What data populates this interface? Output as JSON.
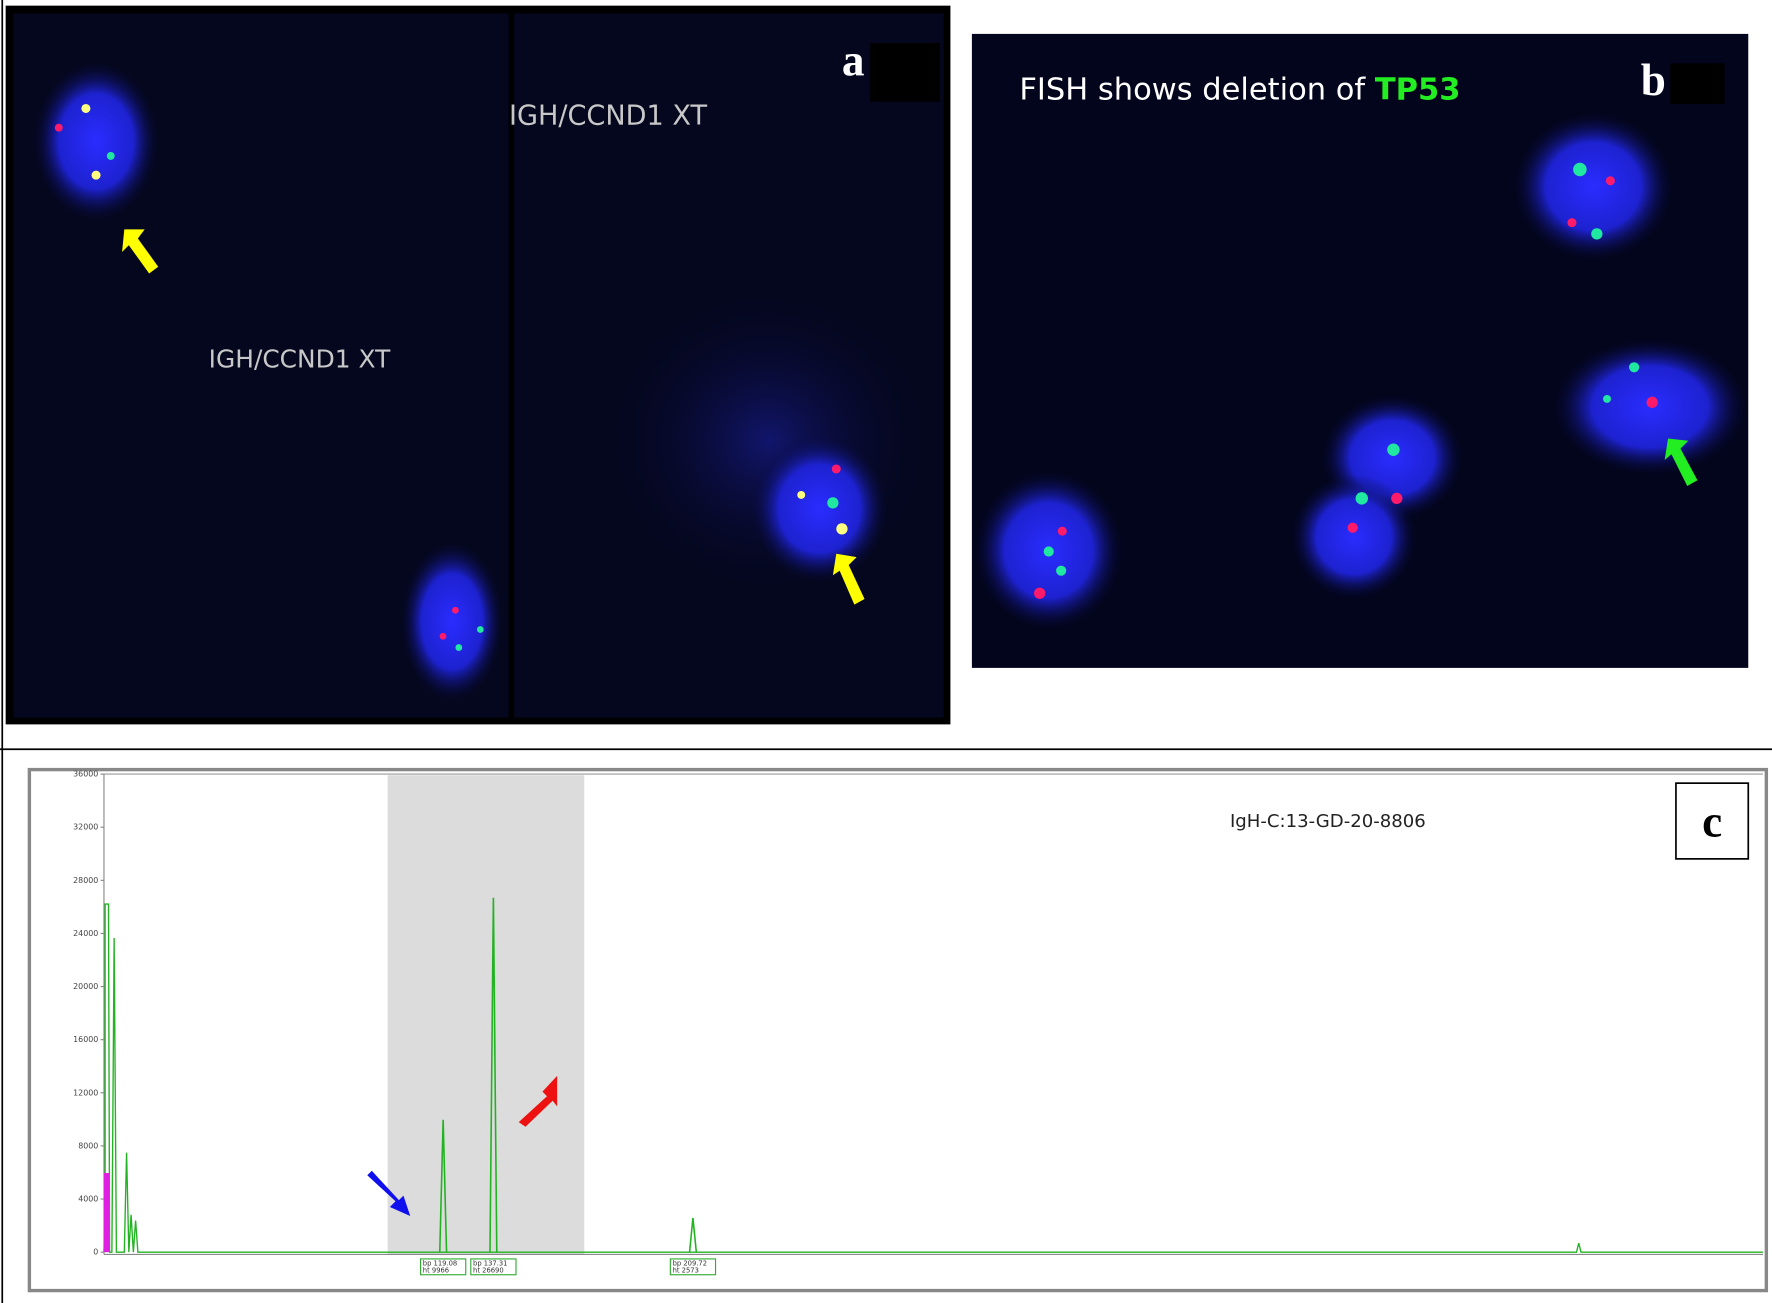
{
  "panel_a": {
    "label": "a",
    "probe_left": "IGH/CCND1 XT",
    "probe_right": "IGH/CCND1 XT"
  },
  "panel_b": {
    "label": "b",
    "caption": "FISH shows deletion of ",
    "gene": "TP53"
  },
  "panel_c": {
    "label": "c",
    "sample": "IgH-C:13-GD-20-8806",
    "ylim": [
      0,
      36000
    ],
    "yticks": [
      0,
      4000,
      8000,
      12000,
      16000,
      20000,
      24000,
      28000,
      32000,
      36000
    ],
    "xlim": [
      -4,
      598
    ],
    "peaks": [
      {
        "size": 119.08,
        "height": 9966,
        "labels": [
          "bp 119.08",
          "ht 9966"
        ]
      },
      {
        "size": 137.31,
        "height": 26690,
        "labels": [
          "bp 137.31",
          "ht 26690"
        ]
      },
      {
        "size": 209.72,
        "height": 2573,
        "labels": [
          "bp 209.72",
          "ht 2573"
        ]
      }
    ]
  }
}
